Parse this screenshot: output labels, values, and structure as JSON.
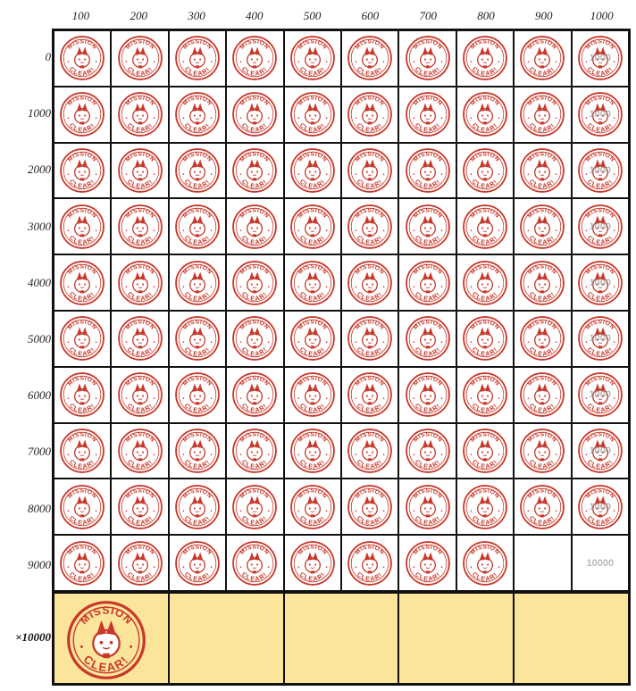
{
  "columns": [
    "100",
    "200",
    "300",
    "400",
    "500",
    "600",
    "700",
    "800",
    "900",
    "1000"
  ],
  "rows": [
    "0",
    "1000",
    "2000",
    "3000",
    "4000",
    "5000",
    "6000",
    "7000",
    "8000",
    "9000"
  ],
  "big_row_label": "×10000",
  "stamp": {
    "top_text": "MISSION",
    "bottom_text": "CLEAR!",
    "icon": "bunny-face-icon",
    "color": "#c8382b"
  },
  "last_column_overlay": "1000",
  "empty_cell_text": "10000",
  "stamped_cells_count_last_row": 8,
  "big_row_stamped": 1,
  "colors": {
    "grid_border": "#111111",
    "big_row_fill": "#fbe59a",
    "stamp_red": "#c8382b",
    "faded_number": "#b8b8b8"
  }
}
